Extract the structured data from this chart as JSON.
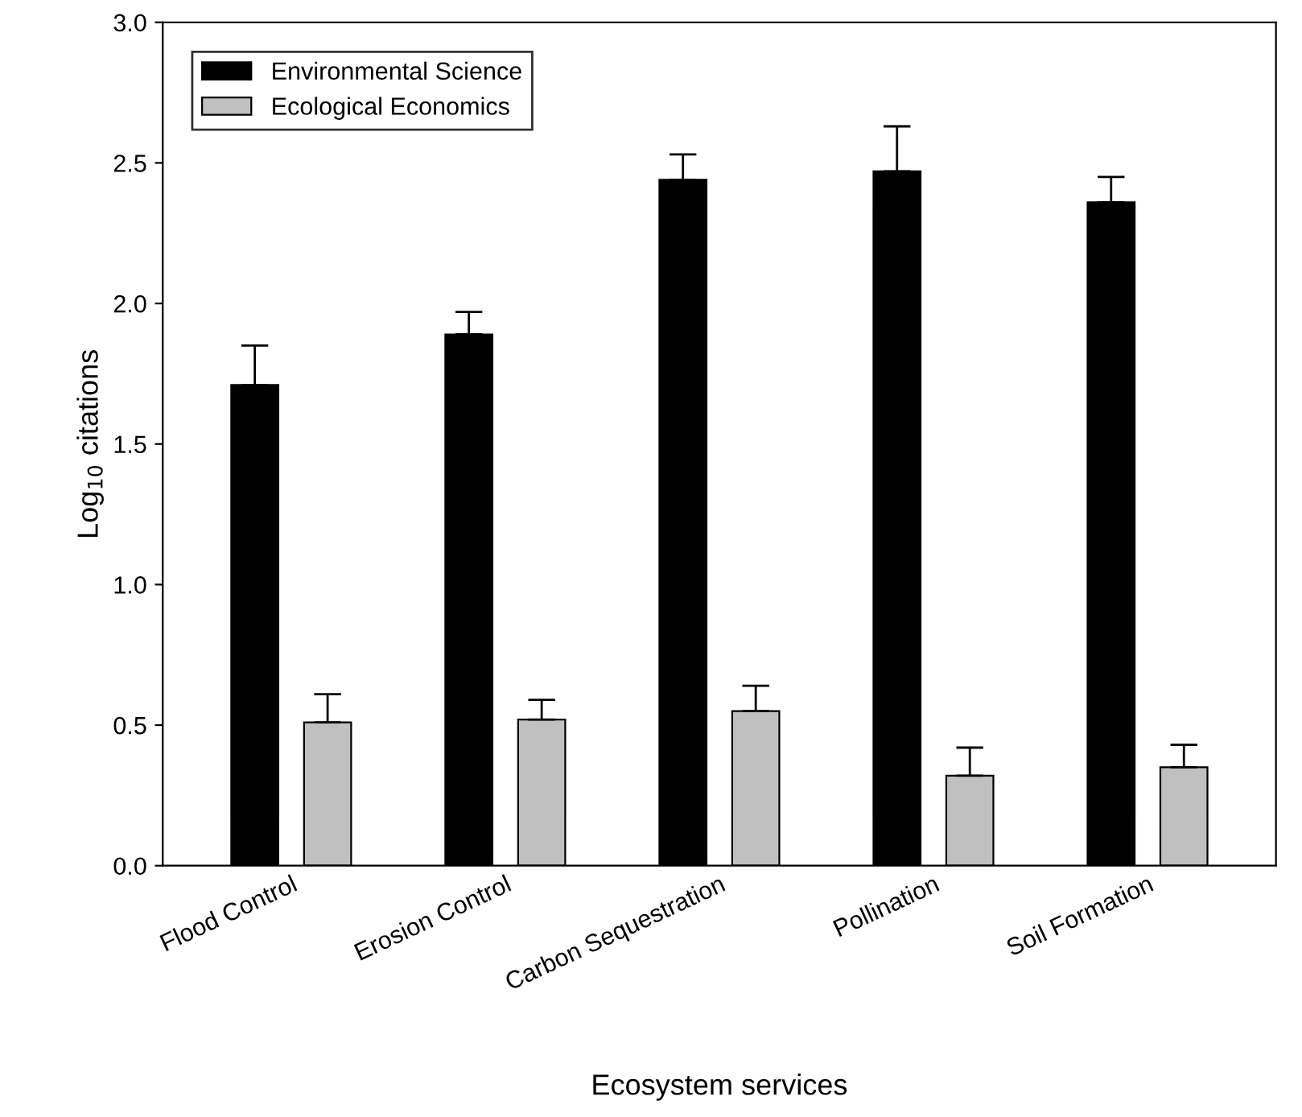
{
  "chart_data": {
    "type": "bar",
    "xlabel": "Ecosystem services",
    "ylabel": "Log$_{10}$ citations",
    "categories": [
      "Flood Control",
      "Erosion Control",
      "Carbon Sequestration",
      "Pollination",
      "Soil Formation"
    ],
    "series": [
      {
        "name": "Environmental Science",
        "color": "#000000",
        "values": [
          1.71,
          1.89,
          2.44,
          2.47,
          2.36
        ],
        "errors": [
          [
            1.71,
            1.85
          ],
          [
            1.89,
            1.97
          ],
          [
            2.44,
            2.53
          ],
          [
            2.47,
            2.63
          ],
          [
            2.36,
            2.45
          ]
        ]
      },
      {
        "name": "Ecological Economics",
        "color": "#c0c0c0",
        "values": [
          0.51,
          0.52,
          0.55,
          0.32,
          0.35
        ],
        "errors": [
          [
            0.51,
            0.61
          ],
          [
            0.52,
            0.59
          ],
          [
            0.55,
            0.64
          ],
          [
            0.32,
            0.42
          ],
          [
            0.35,
            0.43
          ]
        ]
      }
    ],
    "ylim": [
      0,
      3
    ],
    "yticks": [
      {
        "value": 0,
        "label": "0.0"
      },
      {
        "value": 0.5,
        "label": "0.5"
      },
      {
        "value": 1,
        "label": "1.0"
      },
      {
        "value": 1.5,
        "label": "1.5"
      },
      {
        "value": 2,
        "label": "2.0"
      },
      {
        "value": 2.5,
        "label": "2.5"
      },
      {
        "value": 3,
        "label": "3.0"
      }
    ],
    "legend": "top left",
    "grid": false
  }
}
